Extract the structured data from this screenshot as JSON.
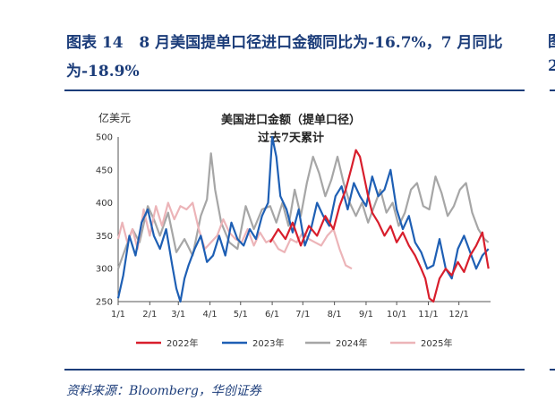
{
  "figure": {
    "label": "图表 14",
    "title": "8 月美国提单口径进口金额同比为-16.7%，7 月同比为-18.9%",
    "source": "资料来源：Bloomberg，华创证券",
    "edge_chars": [
      "图",
      "2"
    ]
  },
  "chart_data": {
    "type": "line",
    "title": "美国进口金额（提单口径）",
    "subtitle": "过去7天累计",
    "ylabel": "亿美元",
    "xlabel": "",
    "ylim": [
      250,
      500
    ],
    "yticks": [
      250,
      300,
      350,
      400,
      450,
      500
    ],
    "xlim": [
      1,
      366
    ],
    "xticks": [
      {
        "label": "1/1",
        "day": 1
      },
      {
        "label": "2/1",
        "day": 32
      },
      {
        "label": "3/1",
        "day": 60
      },
      {
        "label": "4/1",
        "day": 91
      },
      {
        "label": "5/1",
        "day": 121
      },
      {
        "label": "6/1",
        "day": 152
      },
      {
        "label": "7/1",
        "day": 182
      },
      {
        "label": "8/1",
        "day": 213
      },
      {
        "label": "9/1",
        "day": 244
      },
      {
        "label": "10/1",
        "day": 274
      },
      {
        "label": "11/1",
        "day": 305
      },
      {
        "label": "12/1",
        "day": 335
      }
    ],
    "legend_position": "bottom",
    "series": [
      {
        "name": "2022年",
        "color": "#d81e2c",
        "x": [
          150,
          158,
          165,
          172,
          180,
          188,
          196,
          204,
          212,
          218,
          224,
          230,
          234,
          238,
          242,
          246,
          250,
          256,
          262,
          268,
          274,
          280,
          286,
          292,
          298,
          302,
          306,
          310,
          316,
          322,
          328,
          334,
          340,
          346,
          352,
          358,
          364
        ],
        "y": [
          340,
          360,
          345,
          370,
          335,
          365,
          350,
          380,
          360,
          395,
          420,
          455,
          480,
          470,
          440,
          410,
          385,
          370,
          350,
          365,
          340,
          355,
          335,
          320,
          300,
          285,
          255,
          245,
          285,
          300,
          290,
          310,
          295,
          320,
          335,
          355,
          300
        ]
      },
      {
        "name": "2023年",
        "color": "#1e5fb4",
        "x": [
          1,
          6,
          12,
          18,
          24,
          30,
          36,
          42,
          48,
          54,
          58,
          62,
          66,
          70,
          76,
          82,
          88,
          94,
          100,
          106,
          112,
          118,
          124,
          130,
          136,
          142,
          148,
          152,
          156,
          160,
          166,
          172,
          178,
          184,
          190,
          196,
          202,
          208,
          214,
          220,
          226,
          232,
          238,
          244,
          250,
          256,
          262,
          268,
          274,
          280,
          286,
          292,
          298,
          304,
          310,
          316,
          322,
          328,
          334,
          340,
          346,
          352,
          358,
          364
        ],
        "y": [
          255,
          290,
          350,
          320,
          370,
          390,
          350,
          330,
          360,
          305,
          270,
          250,
          285,
          305,
          330,
          350,
          310,
          320,
          350,
          320,
          370,
          345,
          335,
          360,
          345,
          380,
          400,
          500,
          470,
          410,
          390,
          355,
          390,
          335,
          360,
          400,
          380,
          365,
          410,
          425,
          390,
          430,
          410,
          395,
          440,
          410,
          420,
          450,
          390,
          360,
          380,
          340,
          325,
          300,
          305,
          345,
          300,
          285,
          330,
          350,
          325,
          300,
          320,
          330
        ]
      },
      {
        "name": "2024年",
        "color": "#a6a6a6",
        "x": [
          1,
          8,
          15,
          22,
          30,
          36,
          42,
          50,
          58,
          66,
          74,
          82,
          88,
          92,
          96,
          102,
          110,
          118,
          126,
          134,
          142,
          150,
          156,
          162,
          168,
          174,
          180,
          186,
          192,
          198,
          204,
          210,
          216,
          222,
          228,
          234,
          240,
          246,
          252,
          258,
          264,
          270,
          276,
          282,
          288,
          294,
          300,
          306,
          312,
          318,
          324,
          330,
          336,
          342,
          348,
          354,
          360,
          364
        ],
        "y": [
          300,
          330,
          360,
          340,
          395,
          375,
          350,
          385,
          325,
          345,
          320,
          380,
          405,
          475,
          420,
          370,
          340,
          330,
          395,
          360,
          390,
          395,
          370,
          400,
          365,
          420,
          380,
          430,
          470,
          445,
          410,
          435,
          470,
          430,
          400,
          380,
          400,
          370,
          395,
          420,
          385,
          400,
          365,
          385,
          420,
          430,
          395,
          390,
          440,
          415,
          380,
          395,
          420,
          430,
          385,
          360,
          345,
          340
        ]
      },
      {
        "name": "2025年",
        "color": "#ecb4b8",
        "x": [
          1,
          5,
          10,
          15,
          20,
          26,
          32,
          38,
          44,
          50,
          56,
          62,
          68,
          74,
          80,
          86,
          92,
          98,
          104,
          110,
          116,
          122,
          128,
          134,
          140,
          146,
          152,
          158,
          164,
          170,
          176,
          182,
          188,
          194,
          200,
          206,
          212,
          218,
          224,
          230
        ],
        "y": [
          345,
          370,
          340,
          360,
          330,
          390,
          350,
          395,
          365,
          400,
          375,
          395,
          390,
          400,
          360,
          330,
          340,
          350,
          375,
          355,
          345,
          340,
          360,
          335,
          355,
          340,
          345,
          330,
          325,
          345,
          340,
          355,
          345,
          340,
          335,
          350,
          360,
          330,
          305,
          300
        ]
      }
    ]
  }
}
